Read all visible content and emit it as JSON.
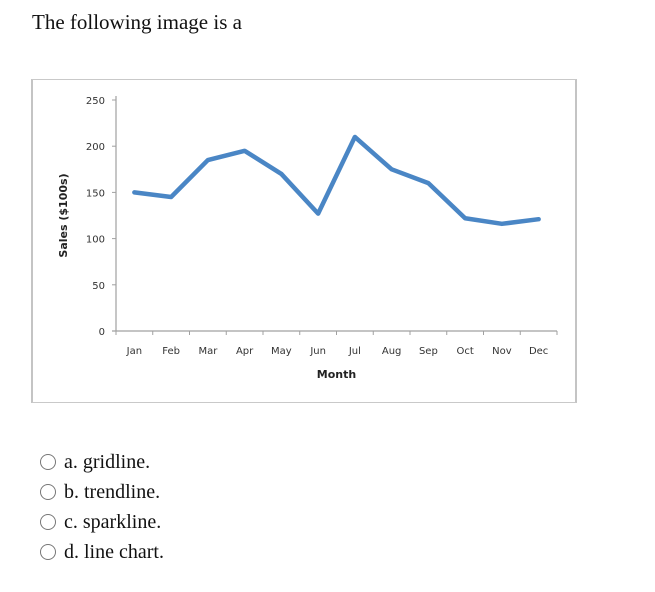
{
  "question": {
    "text": "The following image is a"
  },
  "chart_data": {
    "type": "line",
    "title": "",
    "xlabel": "Month",
    "ylabel": "Sales ($100s)",
    "categories": [
      "Jan",
      "Feb",
      "Mar",
      "Apr",
      "May",
      "Jun",
      "Jul",
      "Aug",
      "Sep",
      "Oct",
      "Nov",
      "Dec"
    ],
    "series": [
      {
        "name": "Sales",
        "color": "#4a86c5",
        "values": [
          150,
          145,
          185,
          195,
          170,
          127,
          210,
          175,
          160,
          122,
          116,
          121
        ]
      }
    ],
    "yticks": [
      0,
      50,
      100,
      150,
      200,
      250
    ],
    "ylim": [
      0,
      250
    ],
    "grid": false,
    "legend": "none"
  },
  "options": [
    {
      "letter": "a.",
      "label": "gridline."
    },
    {
      "letter": "b.",
      "label": "trendline."
    },
    {
      "letter": "c.",
      "label": "sparkline."
    },
    {
      "letter": "d.",
      "label": "line chart."
    }
  ]
}
